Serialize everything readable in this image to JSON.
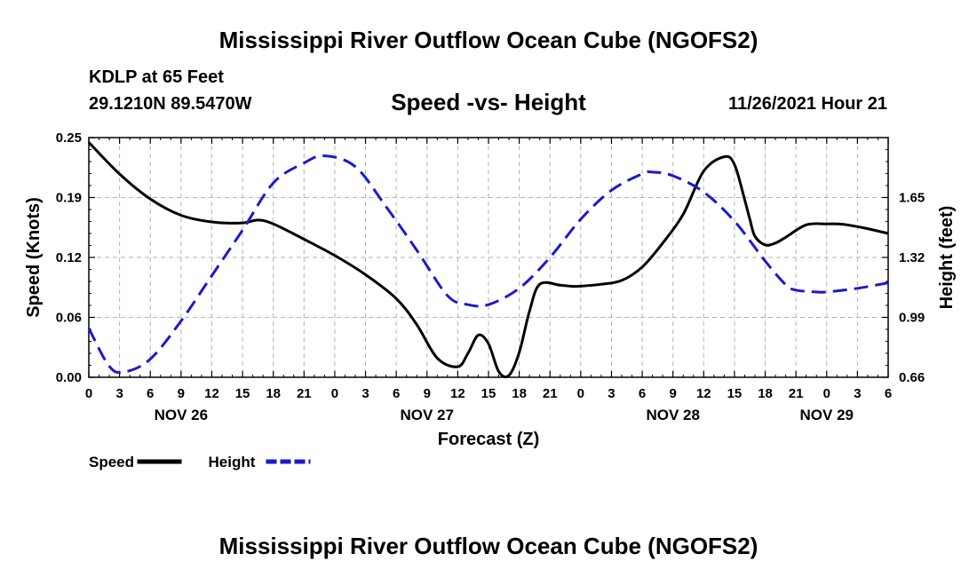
{
  "page": {
    "title": "Mississippi River Outflow Ocean Cube (NGOFS2)",
    "bottom_title": "Mississippi River Outflow Ocean Cube (NGOFS2)",
    "station": "KDLP at 65 Feet",
    "coordinates": "29.1210N  89.5470W",
    "subtitle": "Speed -vs- Height",
    "datetime": "11/26/2021 Hour 21"
  },
  "chart_data": {
    "type": "line",
    "title": "Speed -vs- Height",
    "xlabel": "Forecast (Z)",
    "ylabel": "Speed (Knots)",
    "y2label": "Height (feet)",
    "x_range": [
      0,
      78
    ],
    "ylim": [
      0,
      0.25
    ],
    "y2lim": [
      0.66,
      1.98
    ],
    "x_tick_labels": [
      "0",
      "3",
      "6",
      "9",
      "12",
      "15",
      "18",
      "21",
      "0",
      "3",
      "6",
      "9",
      "12",
      "15",
      "18",
      "21",
      "0",
      "3",
      "6",
      "9",
      "12",
      "15",
      "18",
      "21",
      "0",
      "3",
      "6"
    ],
    "day_labels": [
      {
        "x": 9,
        "label": "NOV 26"
      },
      {
        "x": 33,
        "label": "NOV 27"
      },
      {
        "x": 57,
        "label": "NOV 28"
      },
      {
        "x": 72,
        "label": "NOV 29"
      }
    ],
    "y_ticks": [
      {
        "value": 0,
        "label": "0.00"
      },
      {
        "value": 0.0625,
        "label": "0.06"
      },
      {
        "value": 0.125,
        "label": "0.12"
      },
      {
        "value": 0.1875,
        "label": "0.19"
      },
      {
        "value": 0.25,
        "label": "0.25"
      }
    ],
    "y2_ticks": [
      {
        "value": 0.66,
        "label": "0.66"
      },
      {
        "value": 0.99,
        "label": "0.99"
      },
      {
        "value": 1.32,
        "label": "1.32"
      },
      {
        "value": 1.65,
        "label": "1.65"
      }
    ],
    "series": [
      {
        "name": "Speed",
        "axis": "left",
        "color": "#000000",
        "dash": "solid",
        "x": [
          0,
          3,
          6,
          9,
          12,
          15,
          16.5,
          18,
          21,
          24,
          27,
          30,
          32,
          34,
          36,
          37,
          38,
          39,
          40,
          41,
          42,
          43,
          44,
          46,
          47,
          48,
          50,
          52,
          54,
          56,
          58,
          60,
          62,
          63,
          64,
          64.5,
          65,
          66,
          67,
          68,
          70,
          72,
          73,
          74,
          76,
          78
        ],
        "y": [
          0.245,
          0.212,
          0.186,
          0.169,
          0.162,
          0.161,
          0.164,
          0.16,
          0.144,
          0.127,
          0.107,
          0.082,
          0.055,
          0.02,
          0.011,
          0.025,
          0.044,
          0.035,
          0.006,
          0.002,
          0.026,
          0.069,
          0.097,
          0.096,
          0.095,
          0.095,
          0.097,
          0.101,
          0.115,
          0.14,
          0.17,
          0.215,
          0.23,
          0.222,
          0.185,
          0.165,
          0.147,
          0.138,
          0.14,
          0.146,
          0.159,
          0.16,
          0.16,
          0.159,
          0.155,
          0.15
        ]
      },
      {
        "name": "Height",
        "axis": "right",
        "color": "#1a1acc",
        "dash": "dashed",
        "x": [
          0,
          2,
          3.5,
          6,
          9,
          12,
          15,
          18,
          21,
          23,
          26,
          29,
          32,
          35,
          37,
          39,
          42,
          45,
          48,
          51,
          54,
          55,
          57,
          60,
          63,
          66,
          68,
          69,
          71,
          72,
          75,
          78
        ],
        "y": [
          0.93,
          0.72,
          0.69,
          0.76,
          0.97,
          1.22,
          1.47,
          1.73,
          1.84,
          1.88,
          1.82,
          1.6,
          1.36,
          1.11,
          1.06,
          1.06,
          1.15,
          1.32,
          1.53,
          1.69,
          1.78,
          1.79,
          1.77,
          1.68,
          1.52,
          1.3,
          1.17,
          1.14,
          1.13,
          1.13,
          1.15,
          1.18
        ]
      }
    ],
    "legend": [
      {
        "label": "Speed",
        "color": "#000000",
        "dash": "solid"
      },
      {
        "label": "Height",
        "color": "#1a1acc",
        "dash": "dashed"
      }
    ],
    "grid": true
  }
}
